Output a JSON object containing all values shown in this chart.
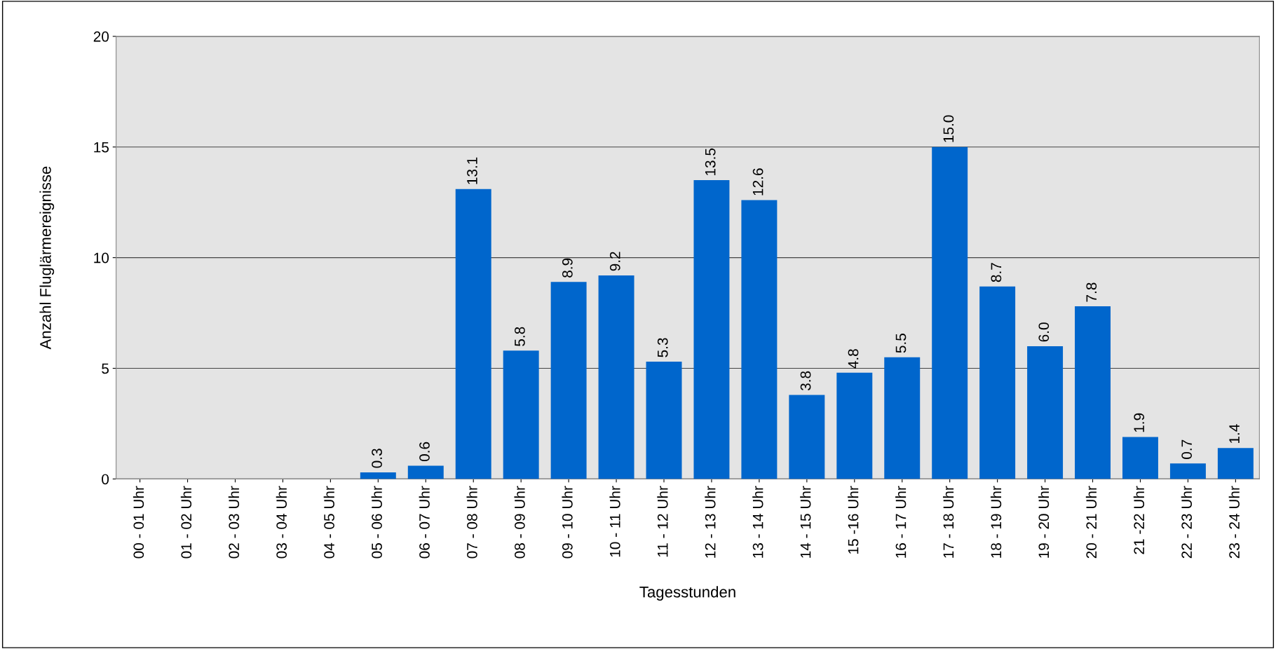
{
  "chart_data": {
    "type": "bar",
    "xlabel": "Tagesstunden",
    "ylabel": "Anzahl Fluglärmereignisse",
    "categories": [
      "00 - 01 Uhr",
      "01 - 02 Uhr",
      "02 - 03 Uhr",
      "03 - 04 Uhr",
      "04 - 05 Uhr",
      "05 - 06 Uhr",
      "06 - 07 Uhr",
      "07 - 08 Uhr",
      "08 - 09 Uhr",
      "09 - 10 Uhr",
      "10 - 11 Uhr",
      "11 - 12 Uhr",
      "12 - 13 Uhr",
      "13 - 14 Uhr",
      "14 - 15 Uhr",
      "15 -16 Uhr",
      "16 - 17 Uhr",
      "17 - 18 Uhr",
      "18 - 19 Uhr",
      "19 - 20 Uhr",
      "20 - 21 Uhr",
      "21 -22 Uhr",
      "22 - 23 Uhr",
      "23 - 24 Uhr"
    ],
    "values": [
      0,
      0,
      0,
      0,
      0,
      0.3,
      0.6,
      13.1,
      5.8,
      8.9,
      9.2,
      5.3,
      13.5,
      12.6,
      3.8,
      4.8,
      5.5,
      15.0,
      8.7,
      6.0,
      7.8,
      1.9,
      0.7,
      1.4
    ],
    "value_labels": [
      null,
      null,
      null,
      null,
      null,
      "0.3",
      "0.6",
      "13.1",
      "5.8",
      "8.9",
      "9.2",
      "5.3",
      "13.5",
      "12.6",
      "3.8",
      "4.8",
      "5.5",
      "15.0",
      "8.7",
      "6.0",
      "7.8",
      "1.9",
      "0.7",
      "1.4"
    ],
    "color": "#0066cc",
    "ylim": [
      0,
      20
    ],
    "yticks": [
      0,
      5,
      10,
      15,
      20
    ],
    "grid": "y",
    "legend": false
  }
}
